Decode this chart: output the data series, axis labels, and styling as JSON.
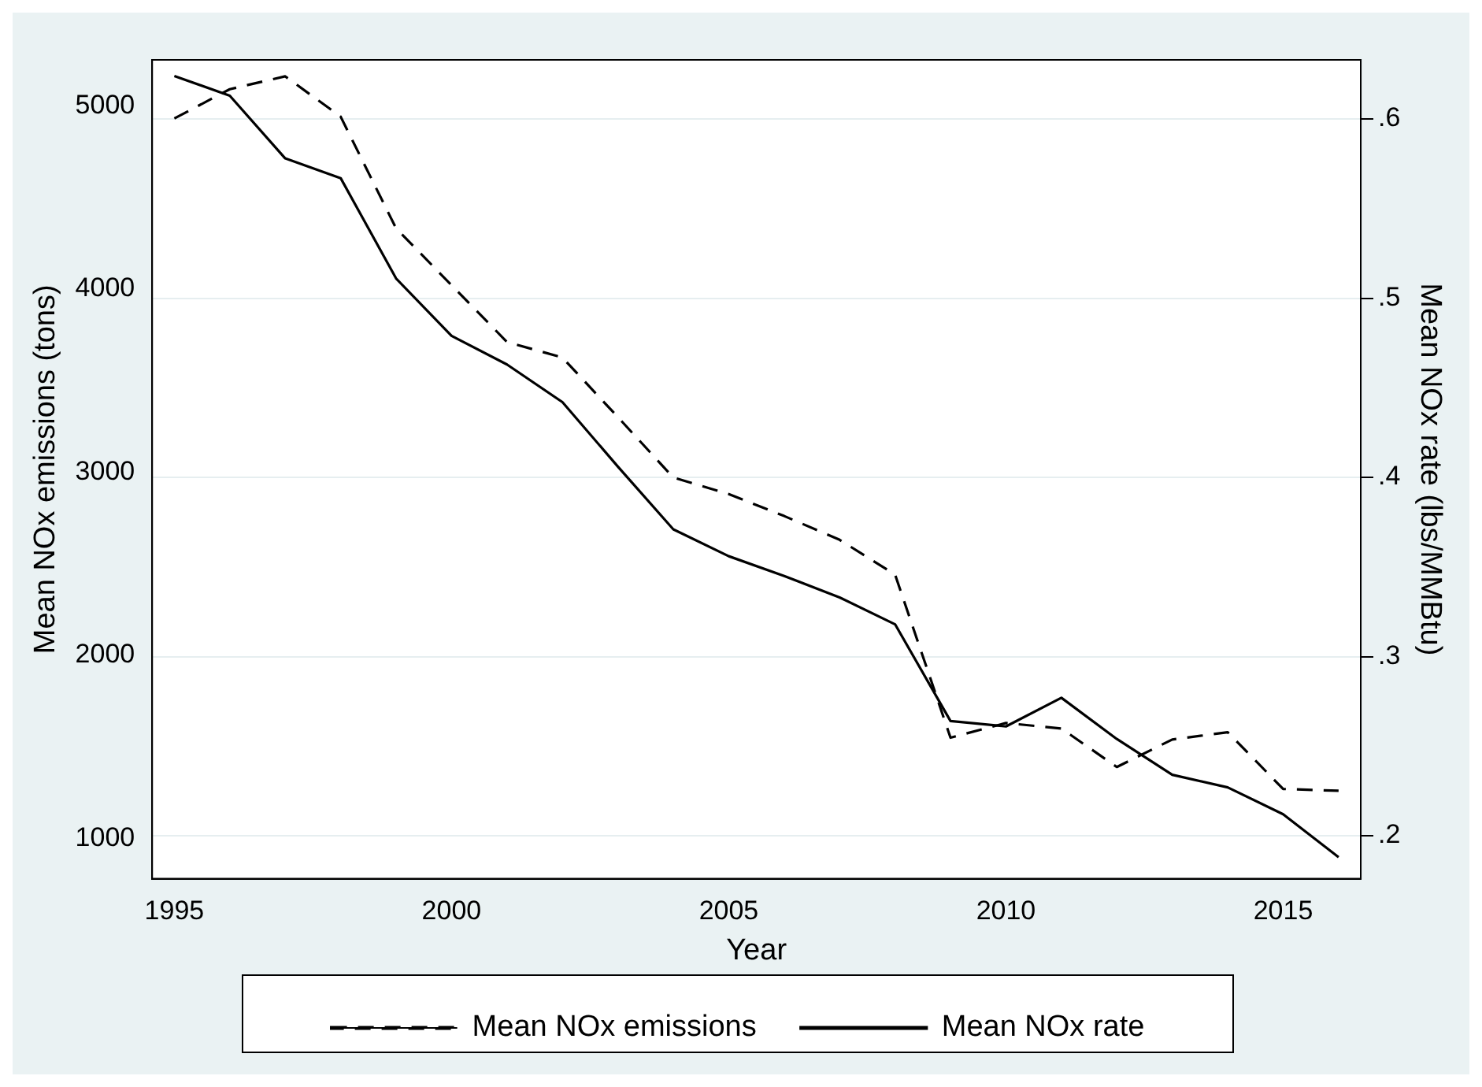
{
  "chart_data": {
    "type": "line",
    "xlabel": "Year",
    "ylabel": "Mean NOx emissions (tons)",
    "y2label": "Mean NOx rate (lbs/MMBtu)",
    "x": [
      1995,
      1996,
      1997,
      1998,
      1999,
      2000,
      2001,
      2002,
      2003,
      2004,
      2005,
      2006,
      2007,
      2008,
      2009,
      2010,
      2011,
      2012,
      2013,
      2014,
      2015,
      2016
    ],
    "series": [
      {
        "name": "Mean NOx emissions",
        "color": "#000000",
        "line_style": "dashed",
        "values": [
          4930,
          5090,
          5160,
          4940,
          4330,
          4020,
          3710,
          3625,
          3300,
          2970,
          2880,
          2760,
          2630,
          2440,
          1550,
          1630,
          1600,
          1390,
          1540,
          1580,
          1270,
          1260
        ]
      },
      {
        "name": "Mean NOx rate",
        "color": "#000000",
        "line_style": "solid",
        "axis": "y2",
        "values": [
          0.624,
          0.613,
          0.578,
          0.567,
          0.511,
          0.479,
          0.463,
          0.442,
          0.406,
          0.371,
          0.356,
          0.345,
          0.333,
          0.318,
          0.264,
          0.261,
          0.277,
          0.254,
          0.234,
          0.227,
          0.212,
          0.188
        ]
      }
    ],
    "xlim": [
      1994.6,
      2016.4
    ],
    "xticks": [
      1995,
      2000,
      2005,
      2010,
      2015
    ],
    "ylim": [
      780,
      5250
    ],
    "yticks": [
      1000,
      2000,
      3000,
      4000,
      5000
    ],
    "y2lim": [
      0.176,
      0.633
    ],
    "y2ticks": [
      {
        "value": 0.2,
        "label": ".2"
      },
      {
        "value": 0.3,
        "label": ".3"
      },
      {
        "value": 0.4,
        "label": ".4"
      },
      {
        "value": 0.5,
        "label": ".5"
      },
      {
        "value": 0.6,
        "label": ".6"
      }
    ],
    "grid": "y2",
    "legend": "bottom",
    "marker": "none"
  }
}
